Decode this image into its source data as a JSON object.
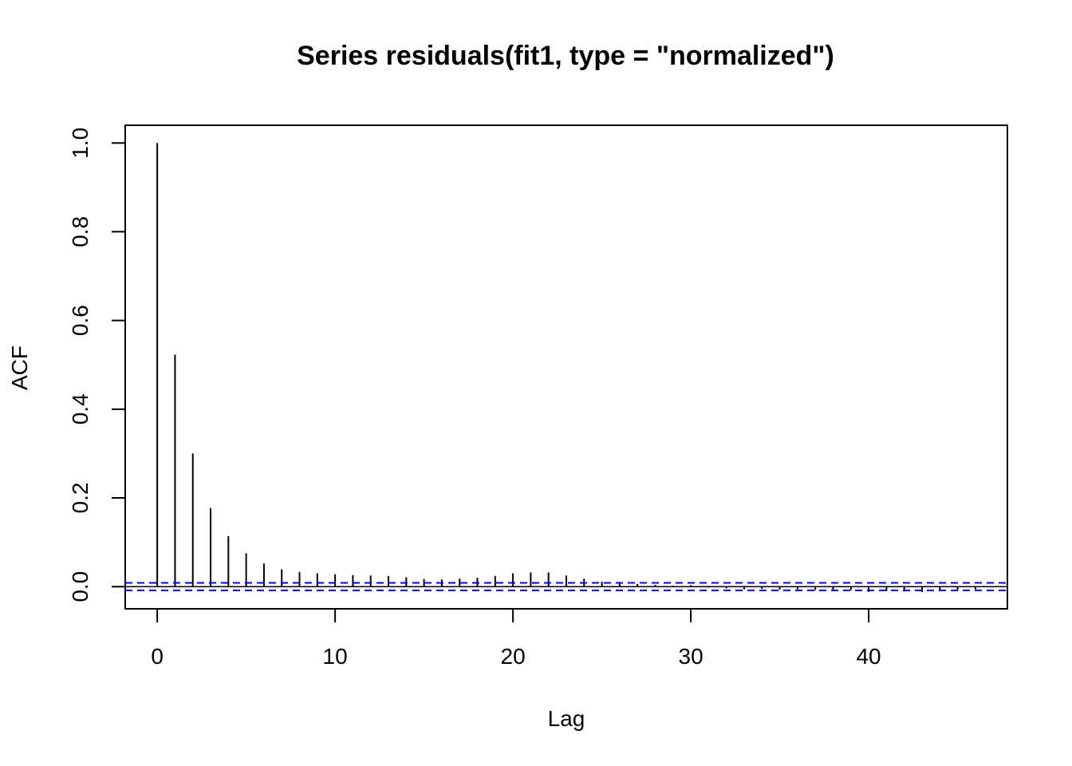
{
  "chart_data": {
    "type": "bar",
    "title": "Series  residuals(fit1, type = \"normalized\")",
    "xlabel": "Lag",
    "ylabel": "ACF",
    "xlim": [
      -1.8,
      47.8
    ],
    "ylim": [
      -0.05,
      1.04
    ],
    "x_ticks": [
      0,
      10,
      20,
      30,
      40
    ],
    "y_ticks": [
      0.0,
      0.2,
      0.4,
      0.6,
      0.8,
      1.0
    ],
    "x_tick_labels": [
      "0",
      "10",
      "20",
      "30",
      "40"
    ],
    "y_tick_labels": [
      "0.0",
      "0.2",
      "0.4",
      "0.6",
      "0.8",
      "1.0"
    ],
    "lags": [
      0,
      1,
      2,
      3,
      4,
      5,
      6,
      7,
      8,
      9,
      10,
      11,
      12,
      13,
      14,
      15,
      16,
      17,
      18,
      19,
      20,
      21,
      22,
      23,
      24,
      25,
      26,
      27,
      28,
      29,
      30,
      31,
      32,
      33,
      34,
      35,
      36,
      37,
      38,
      39,
      40,
      41,
      42,
      43,
      44,
      45,
      46
    ],
    "acf": [
      1.0,
      0.523,
      0.3,
      0.177,
      0.114,
      0.075,
      0.052,
      0.039,
      0.033,
      0.03,
      0.028,
      0.026,
      0.025,
      0.024,
      0.021,
      0.017,
      0.016,
      0.018,
      0.02,
      0.024,
      0.03,
      0.032,
      0.032,
      0.025,
      0.018,
      0.011,
      0.008,
      0.006,
      0.004,
      0.002,
      0.003,
      -0.002,
      -0.004,
      -0.006,
      -0.005,
      -0.007,
      -0.006,
      -0.008,
      -0.01,
      -0.008,
      -0.012,
      -0.01,
      -0.011,
      -0.012,
      -0.01,
      -0.008,
      -0.006
    ],
    "confidence_band": 0.0085,
    "colors": {
      "spikes": "#000000",
      "zero_line": "#000000",
      "confidence": "#0000ff",
      "frame": "#000000"
    }
  }
}
